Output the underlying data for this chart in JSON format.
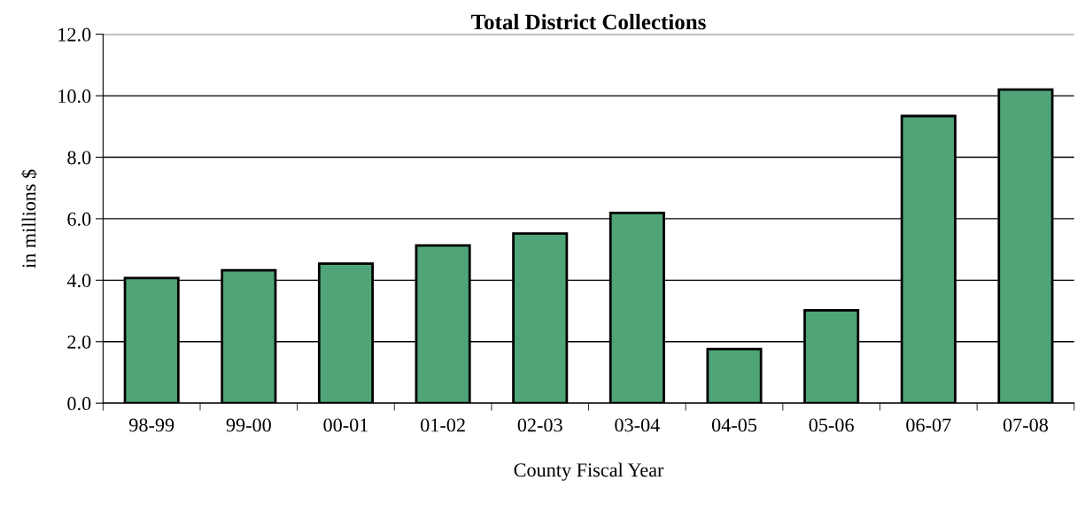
{
  "chart_data": {
    "type": "bar",
    "title": "Total District Collections",
    "xlabel": "County Fiscal Year",
    "ylabel": "in millions $",
    "categories": [
      "98-99",
      "99-00",
      "00-01",
      "01-02",
      "02-03",
      "03-04",
      "04-05",
      "05-06",
      "06-07",
      "07-08"
    ],
    "values": [
      4.07,
      4.32,
      4.54,
      5.13,
      5.52,
      6.19,
      1.76,
      3.02,
      9.34,
      10.2
    ],
    "color": "#4fa577",
    "ylim": [
      0,
      12
    ],
    "yticks": [
      {
        "value": 0,
        "label": "0.0"
      },
      {
        "value": 2,
        "label": "2.0"
      },
      {
        "value": 4,
        "label": "4.0"
      },
      {
        "value": 6,
        "label": "6.0"
      },
      {
        "value": 8,
        "label": "8.0"
      },
      {
        "value": 10,
        "label": "10.0"
      },
      {
        "value": 12,
        "label": "12.0"
      }
    ],
    "grid": "y"
  }
}
